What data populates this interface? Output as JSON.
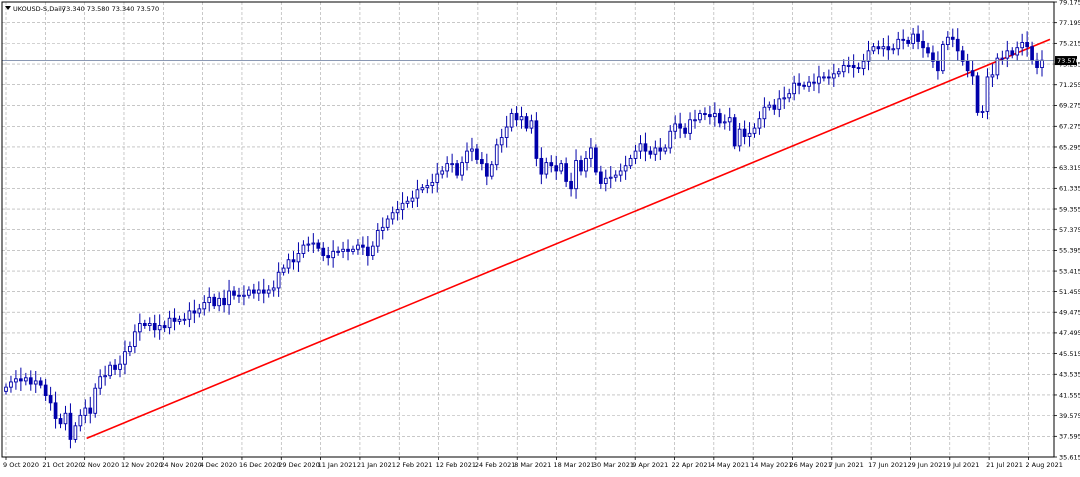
{
  "header": {
    "symbol_label": "UKOUSD-S,Daily",
    "ohlc": "73.340 73.580 73.340 73.570"
  },
  "colors": {
    "candle": "#0000aa",
    "trendline": "#ff0000",
    "price_line": "#7a8aa8",
    "grid": "#a6a6a6"
  },
  "chart_data": {
    "type": "candlestick",
    "y_ticks": [
      "35.615",
      "37.595",
      "39.575",
      "41.555",
      "43.535",
      "45.515",
      "47.495",
      "49.475",
      "51.455",
      "53.415",
      "55.395",
      "57.375",
      "59.355",
      "61.335",
      "63.315",
      "65.295",
      "67.275",
      "69.275",
      "71.255",
      "73.235",
      "75.215",
      "77.195",
      "79.175"
    ],
    "ylim": [
      35.615,
      79.175
    ],
    "x_labels": [
      "9 Oct 2020",
      "21 Oct 2020",
      "2 Nov 2020",
      "12 Nov 2020",
      "24 Nov 2020",
      "4 Dec 2020",
      "16 Dec 2020",
      "29 Dec 2020",
      "11 Jan 2021",
      "21 Jan 2021",
      "2 Feb 2021",
      "12 Feb 2021",
      "24 Feb 2021",
      "8 Mar 2021",
      "18 Mar 2021",
      "30 Mar 2021",
      "9 Apr 2021",
      "22 Apr 2021",
      "4 May 2021",
      "14 May 2021",
      "26 May 2021",
      "7 Jun 2021",
      "17 Jun 2021",
      "29 Jun 2021",
      "9 Jul 2021",
      "21 Jul 2021",
      "2 Aug 2021"
    ],
    "current_price": "73.570",
    "trendline": {
      "from": {
        "date": "2 Nov 2020",
        "price": 37.4
      },
      "to": {
        "date": "2 Aug 2021",
        "price": 75.6
      }
    },
    "closes": [
      42.3,
      42.8,
      43.1,
      42.9,
      43.2,
      42.6,
      42.9,
      42.5,
      41.5,
      40.8,
      39.3,
      38.8,
      39.8,
      37.3,
      38.6,
      39.6,
      40.3,
      39.8,
      42.2,
      43.3,
      43.4,
      44.4,
      44.0,
      44.5,
      45.7,
      46.2,
      47.6,
      48.4,
      48.2,
      48.4,
      47.8,
      48.2,
      48.0,
      48.9,
      48.6,
      48.8,
      48.8,
      49.6,
      49.4,
      49.8,
      50.4,
      50.9,
      50.1,
      50.8,
      50.2,
      51.5,
      51.1,
      51.0,
      51.1,
      51.6,
      51.3,
      51.6,
      51.3,
      51.6,
      51.8,
      53.3,
      53.7,
      54.5,
      54.3,
      55.1,
      55.9,
      56.0,
      56.1,
      55.6,
      54.9,
      54.7,
      55.3,
      55.3,
      55.5,
      55.3,
      55.5,
      55.9,
      55.7,
      54.9,
      55.8,
      57.3,
      57.6,
      58.4,
      59.0,
      59.3,
      59.9,
      60.1,
      60.4,
      61.2,
      61.4,
      61.6,
      61.9,
      62.7,
      63.0,
      63.7,
      63.7,
      62.6,
      63.8,
      64.9,
      65.1,
      64.1,
      63.7,
      62.5,
      63.6,
      65.5,
      66.2,
      67.2,
      68.5,
      67.9,
      68.2,
      67.1,
      67.8,
      64.2,
      62.7,
      63.8,
      63.5,
      63.0,
      63.7,
      62.0,
      61.3,
      64.0,
      63.0,
      64.2,
      65.2,
      62.9,
      61.8,
      62.3,
      62.4,
      62.6,
      63.0,
      63.5,
      64.2,
      64.9,
      65.6,
      64.9,
      64.6,
      65.2,
      64.9,
      65.2,
      66.8,
      67.5,
      67.1,
      66.6,
      67.9,
      67.9,
      68.5,
      68.4,
      68.2,
      68.5,
      67.6,
      67.7,
      68.1,
      65.4,
      67.0,
      66.3,
      66.6,
      67.1,
      68.0,
      69.1,
      69.3,
      68.9,
      69.9,
      70.0,
      70.4,
      71.4,
      71.2,
      71.1,
      71.5,
      71.4,
      72.0,
      72.0,
      71.9,
      72.3,
      72.5,
      73.1,
      73.1,
      72.9,
      72.8,
      73.5,
      74.5,
      74.9,
      74.7,
      74.9,
      74.6,
      74.7,
      75.6,
      75.5,
      75.2,
      76.1,
      75.4,
      74.8,
      74.3,
      73.5,
      72.6,
      75.1,
      75.8,
      75.6,
      74.5,
      73.5,
      72.6,
      72.1,
      68.6,
      68.7,
      72.0,
      72.2,
      73.8,
      73.8,
      74.5,
      74.1,
      74.8,
      75.3,
      74.9,
      73.6,
      72.9,
      73.6
    ]
  }
}
